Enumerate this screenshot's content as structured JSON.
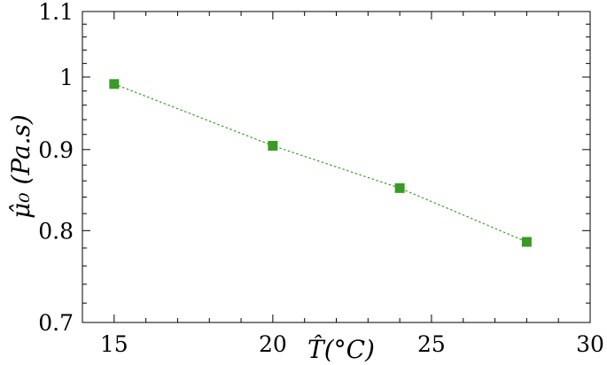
{
  "chart_data": {
    "type": "scatter",
    "title": "",
    "xlabel": "T̂(°C)",
    "ylabel": "μ̂₀ (Pa.s)",
    "xlim": [
      14,
      30
    ],
    "ylim": [
      0.7,
      1.1
    ],
    "y_scale": "log",
    "x_ticks": [
      15,
      20,
      25,
      30
    ],
    "y_ticks": [
      0.7,
      0.8,
      0.9,
      1,
      1.1
    ],
    "x_tick_labels": [
      "15",
      "20",
      "25",
      "30"
    ],
    "y_tick_labels": [
      "0.7",
      "0.8",
      "0.9",
      "1",
      "1.1"
    ],
    "grid": false,
    "series": [
      {
        "x": [
          15,
          20,
          24,
          28
        ],
        "y": [
          0.99,
          0.905,
          0.851,
          0.787
        ],
        "marker": "square",
        "line": "dotted",
        "color": "#3a9a26"
      }
    ]
  }
}
